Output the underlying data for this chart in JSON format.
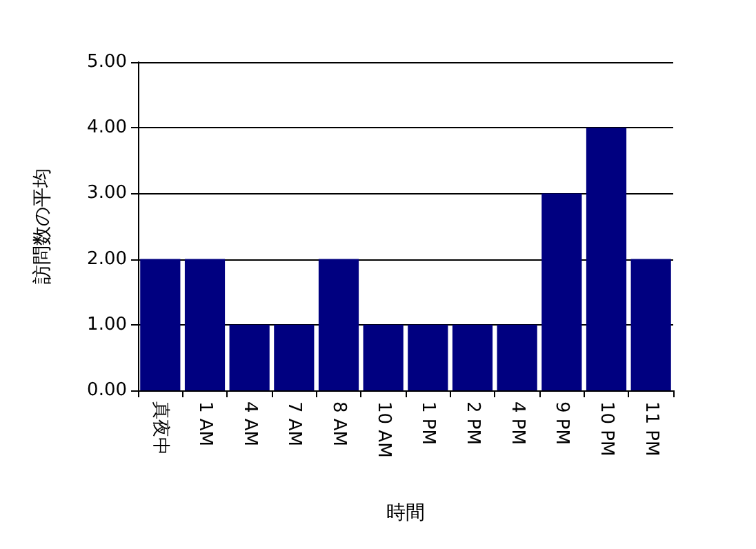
{
  "chart_data": {
    "type": "bar",
    "xlabel": "時間",
    "ylabel": "訪問数の平均",
    "categories": [
      "真夜中",
      "1 AM",
      "4 AM",
      "7 AM",
      "8 AM",
      "10 AM",
      "1 PM",
      "2 PM",
      "4 PM",
      "9 PM",
      "10 PM",
      "11 PM"
    ],
    "values": [
      2,
      2,
      1,
      1,
      2,
      1,
      1,
      1,
      1,
      3,
      4,
      2
    ],
    "color": "#000080",
    "ylim": [
      0,
      5
    ],
    "yticks": [
      {
        "value": 0,
        "label": "0.00"
      },
      {
        "value": 1,
        "label": "1.00"
      },
      {
        "value": 2,
        "label": "2.00"
      },
      {
        "value": 3,
        "label": "3.00"
      },
      {
        "value": 4,
        "label": "4.00"
      },
      {
        "value": 5,
        "label": "5.00"
      }
    ],
    "grid": "y"
  }
}
